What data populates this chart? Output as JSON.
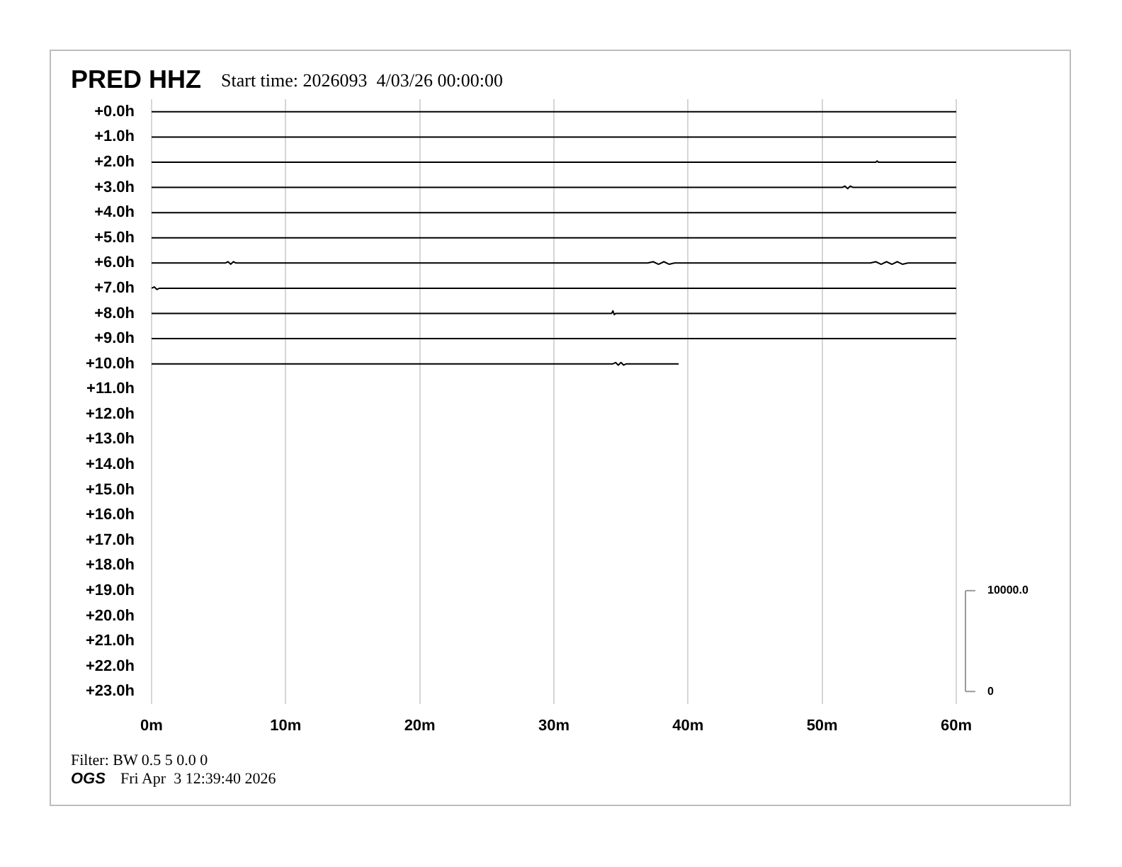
{
  "chart_data": {
    "type": "line",
    "title": "PRED HHZ",
    "subtitle": "Start time: 2026093  4/03/26 00:00:00",
    "annotations": [
      "Filter: BW 0.5 5 0.0 0",
      "OGS",
      "Fri Apr  3 12:39:40 2026"
    ],
    "xlim": [
      0,
      60
    ],
    "xticks": [
      {
        "value": 0,
        "label": "0m"
      },
      {
        "value": 10,
        "label": "10m"
      },
      {
        "value": 20,
        "label": "20m"
      },
      {
        "value": 30,
        "label": "30m"
      },
      {
        "value": 40,
        "label": "40m"
      },
      {
        "value": 50,
        "label": "50m"
      },
      {
        "value": 60,
        "label": "60m"
      }
    ],
    "ylim": [
      23.5,
      -0.5
    ],
    "yticks": [
      {
        "value": 0,
        "label": "+0.0h"
      },
      {
        "value": 1,
        "label": "+1.0h"
      },
      {
        "value": 2,
        "label": "+2.0h"
      },
      {
        "value": 3,
        "label": "+3.0h"
      },
      {
        "value": 4,
        "label": "+4.0h"
      },
      {
        "value": 5,
        "label": "+5.0h"
      },
      {
        "value": 6,
        "label": "+6.0h"
      },
      {
        "value": 7,
        "label": "+7.0h"
      },
      {
        "value": 8,
        "label": "+8.0h"
      },
      {
        "value": 9,
        "label": "+9.0h"
      },
      {
        "value": 10,
        "label": "+10.0h"
      },
      {
        "value": 11,
        "label": "+11.0h"
      },
      {
        "value": 12,
        "label": "+12.0h"
      },
      {
        "value": 13,
        "label": "+13.0h"
      },
      {
        "value": 14,
        "label": "+14.0h"
      },
      {
        "value": 15,
        "label": "+15.0h"
      },
      {
        "value": 16,
        "label": "+16.0h"
      },
      {
        "value": 17,
        "label": "+17.0h"
      },
      {
        "value": 18,
        "label": "+18.0h"
      },
      {
        "value": 19,
        "label": "+19.0h"
      },
      {
        "value": 20,
        "label": "+20.0h"
      },
      {
        "value": 21,
        "label": "+21.0h"
      },
      {
        "value": 22,
        "label": "+22.0h"
      },
      {
        "value": 23,
        "label": "+23.0h"
      }
    ],
    "y2lim": [
      -1250,
      58750
    ],
    "y2ticks": [
      0,
      {
        "value": 10000,
        "label": "10000.0"
      }
    ],
    "grid": "x",
    "series": [
      {
        "color": "#000000",
        "x": [
          0,
          60
        ],
        "values": [
          0,
          0
        ]
      },
      {
        "color": "#000000",
        "x": [
          0,
          60
        ],
        "values": [
          1,
          1
        ]
      },
      {
        "color": "#000000",
        "x": [
          0,
          54.0,
          54.1,
          54.2,
          60
        ],
        "values": [
          2,
          2,
          1.95,
          2,
          2
        ]
      },
      {
        "color": "#000000",
        "x": [
          0,
          51.5,
          51.7,
          51.9,
          52.1,
          52.3,
          60
        ],
        "values": [
          3,
          3,
          2.95,
          3.05,
          2.95,
          3,
          3
        ]
      },
      {
        "color": "#000000",
        "x": [
          0,
          60
        ],
        "values": [
          4,
          4
        ]
      },
      {
        "color": "#000000",
        "x": [
          0,
          60
        ],
        "values": [
          5,
          5
        ]
      },
      {
        "color": "#000000",
        "x": [
          0,
          5.5,
          5.7,
          5.9,
          6.1,
          6.3,
          37,
          37.4,
          37.8,
          38.2,
          38.6,
          39,
          53.6,
          54,
          54.4,
          54.8,
          55.2,
          55.6,
          56,
          56.4,
          60
        ],
        "values": [
          6,
          6,
          5.95,
          6.05,
          5.95,
          6,
          6,
          5.95,
          6.05,
          5.95,
          6.05,
          6,
          6,
          5.95,
          6.05,
          5.95,
          6.05,
          5.95,
          6.05,
          6,
          6
        ]
      },
      {
        "color": "#000000",
        "x": [
          0,
          0.2,
          0.4,
          0.6,
          60
        ],
        "values": [
          7,
          6.95,
          7.05,
          7,
          7
        ]
      },
      {
        "color": "#000000",
        "x": [
          0,
          34.3,
          34.4,
          34.5,
          34.6,
          60
        ],
        "values": [
          8,
          8,
          7.9,
          8.05,
          8,
          8
        ]
      },
      {
        "color": "#000000",
        "x": [
          0,
          60
        ],
        "values": [
          9,
          9
        ]
      },
      {
        "color": "#000000",
        "x": [
          0,
          34.4,
          34.6,
          34.8,
          35,
          35.2,
          35.4,
          39.3
        ],
        "values": [
          10,
          10,
          9.95,
          10.05,
          9.95,
          10.05,
          10,
          10
        ]
      }
    ]
  }
}
